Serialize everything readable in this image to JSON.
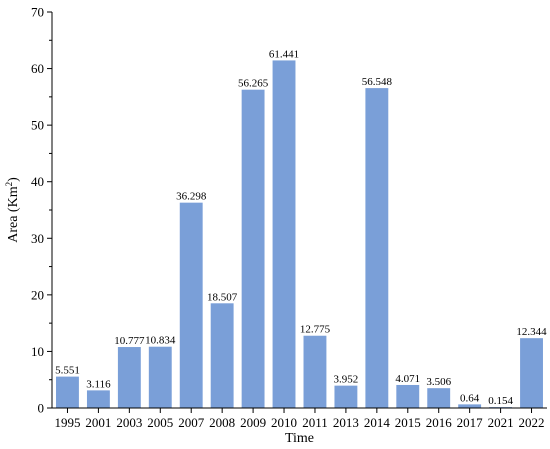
{
  "chart_data": {
    "type": "bar",
    "categories": [
      "1995",
      "2001",
      "2003",
      "2005",
      "2007",
      "2008",
      "2009",
      "2010",
      "2011",
      "2013",
      "2014",
      "2015",
      "2016",
      "2017",
      "2021",
      "2022"
    ],
    "values": [
      5.551,
      3.116,
      10.777,
      10.834,
      36.298,
      18.507,
      56.265,
      61.441,
      12.775,
      3.952,
      56.548,
      4.071,
      3.506,
      0.64,
      0.154,
      12.344
    ],
    "data_labels": [
      "5.551",
      "3.116",
      "10.777",
      "10.834",
      "36.298",
      "18.507",
      "56.265",
      "61.441",
      "12.775",
      "3.952",
      "56.548",
      "4.071",
      "3.506",
      "0.64",
      "0.154",
      "12.344"
    ],
    "title": "",
    "xlabel": "Time",
    "ylabel_base": "Area (Km",
    "ylabel_sup": "2",
    "ylabel_close": ")",
    "ylim": [
      0,
      70
    ],
    "yticks": [
      0,
      10,
      20,
      30,
      40,
      50,
      60,
      70
    ],
    "ytick_labels": [
      "0",
      "10",
      "20",
      "30",
      "40",
      "50",
      "60",
      "70"
    ],
    "bar_color": "#7a9fd8",
    "grid": false,
    "legend": "none"
  }
}
